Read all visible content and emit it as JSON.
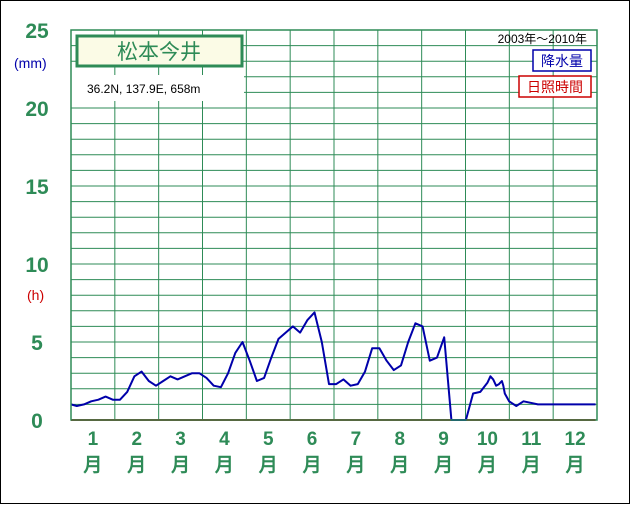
{
  "chart_data": {
    "type": "line",
    "station_name": "松本今井",
    "location": "36.2N,  137.9E,  658m",
    "period": "2003年〜2010年",
    "legend": [
      {
        "label": "降水量",
        "color": "#0000aa"
      },
      {
        "label": "日照時間",
        "color": "#cc0000"
      }
    ],
    "y_unit_precip": "(mm)",
    "y_unit_sunshine": "(h)",
    "colors": {
      "precip": "#0000aa",
      "sunshine": "#cc0000",
      "grid": "#2e8b57",
      "tick_text": "#2e8b57"
    },
    "ylim": [
      0,
      25
    ],
    "y_ticks": [
      "0",
      "5",
      "10",
      "15",
      "20",
      "25"
    ],
    "month_suffix": "月",
    "months": [
      "1",
      "2",
      "3",
      "4",
      "5",
      "6",
      "7",
      "8",
      "9",
      "10",
      "11",
      "12"
    ],
    "series": [
      {
        "name": "降水量",
        "x": [
          1,
          5,
          10,
          15,
          20,
          25,
          30,
          35,
          40,
          45,
          50,
          55,
          60,
          65,
          70,
          75,
          80,
          85,
          90,
          95,
          100,
          105,
          110,
          115,
          120,
          125,
          130,
          135,
          140,
          145,
          150,
          155,
          160,
          165,
          170,
          175,
          180,
          185,
          190,
          195,
          200,
          205,
          210,
          215,
          220,
          225,
          230,
          235,
          240,
          245,
          250,
          255,
          260,
          265,
          270,
          275,
          280,
          285,
          290,
          292,
          294,
          296,
          298,
          300,
          301,
          302,
          305,
          310,
          315,
          320,
          325,
          330,
          335,
          340,
          345,
          350,
          355,
          360,
          365
        ],
        "values": [
          1.0,
          0.9,
          1.0,
          1.2,
          1.3,
          1.5,
          1.3,
          1.3,
          1.8,
          2.8,
          3.1,
          2.5,
          2.2,
          2.5,
          2.8,
          2.6,
          2.8,
          3.0,
          3.0,
          2.7,
          2.2,
          2.1,
          3.0,
          4.3,
          5.0,
          3.8,
          2.5,
          2.7,
          4.0,
          5.2,
          5.6,
          6.0,
          5.6,
          6.4,
          6.9,
          5.0,
          2.3,
          2.3,
          2.6,
          2.2,
          2.3,
          3.1,
          4.6,
          4.6,
          3.8,
          3.2,
          3.5,
          5.0,
          6.2,
          6.0,
          3.8,
          4.0,
          5.3,
          0.0,
          0.0,
          0.0,
          1.7,
          1.8,
          2.4,
          2.8,
          2.6,
          2.2,
          2.3,
          2.5,
          2.2,
          1.7,
          1.2,
          0.9,
          1.2,
          1.1,
          1.0,
          1.0,
          1.0,
          1.0,
          1.0,
          1.0,
          1.0,
          1.0,
          1.0
        ],
        "color": "#0000aa"
      },
      {
        "name": "日照時間",
        "x": [
          1,
          365
        ],
        "values": [
          0.0,
          0.0
        ],
        "color": "#cc0000"
      }
    ]
  }
}
